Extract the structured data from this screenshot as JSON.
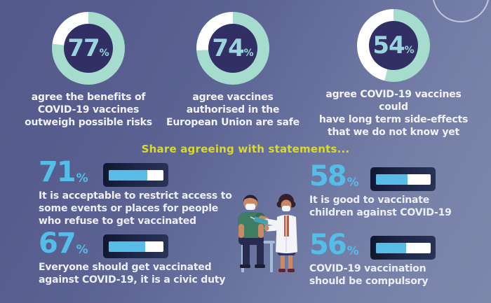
{
  "colors": {
    "background_start": "#545a8b",
    "background_end": "#7d87ac",
    "donut_ring": "#a6dccd",
    "donut_rest": "#ffffff",
    "donut_hole": "#312f63",
    "donut_number": "#9ad4dd",
    "bar_fill": "#57bde6",
    "bar_rest": "#ffffff",
    "bar_frame": "#1d2647",
    "stat_number": "#54bde8",
    "heading_yellow": "#d9da2c",
    "text": "#f1f2fa"
  },
  "donut_stats": [
    {
      "value": 77,
      "unit": "%",
      "caption": "agree the benefits of\nCOVID-19 vaccines\noutweigh possible risks"
    },
    {
      "value": 74,
      "unit": "%",
      "caption": "agree vaccines\nauthorised in the\nEuropean Union are safe"
    },
    {
      "value": 54,
      "unit": "%",
      "caption": "agree COVID-19 vaccines could\nhave long term side-effects\nthat we do not know yet"
    }
  ],
  "section_heading": "Share agreeing with statements...",
  "bar_stats_left": [
    {
      "value": 71,
      "unit": "%",
      "caption": "It is acceptable to restrict access to\nsome events or places for people\nwho refuse to get vaccinated"
    },
    {
      "value": 67,
      "unit": "%",
      "caption": "Everyone should get vaccinated\nagainst COVID-19, it is a civic duty"
    }
  ],
  "bar_stats_right": [
    {
      "value": 58,
      "unit": "%",
      "caption": "It is good to vaccinate\nchildren against COVID-19"
    },
    {
      "value": 56,
      "unit": "%",
      "caption": "COVID-19 vaccination\nshould be compulsory"
    }
  ],
  "illustration": {
    "description": "doctor wearing mask and white coat vaccinating a masked man seated on a chair"
  },
  "chart_data": [
    {
      "type": "pie",
      "subtype": "donut",
      "categories": [
        "agree",
        "remainder"
      ],
      "values": [
        77,
        23
      ],
      "label": "agree the benefits of COVID-19 vaccines outweigh possible risks",
      "colors": [
        "#a6dccd",
        "#ffffff"
      ]
    },
    {
      "type": "pie",
      "subtype": "donut",
      "categories": [
        "agree",
        "remainder"
      ],
      "values": [
        74,
        26
      ],
      "label": "agree vaccines authorised in the European Union are safe",
      "colors": [
        "#a6dccd",
        "#ffffff"
      ]
    },
    {
      "type": "pie",
      "subtype": "donut",
      "categories": [
        "agree",
        "remainder"
      ],
      "values": [
        54,
        46
      ],
      "label": "agree COVID-19 vaccines could have long term side-effects that we do not know yet",
      "colors": [
        "#a6dccd",
        "#ffffff"
      ]
    },
    {
      "type": "bar",
      "title": "Share agreeing with statements...",
      "categories": [
        "It is acceptable to restrict access to some events or places for people who refuse to get vaccinated",
        "Everyone should get vaccinated against COVID-19, it is a civic duty",
        "It is good to vaccinate children against COVID-19",
        "COVID-19 vaccination should be compulsory"
      ],
      "values": [
        71,
        67,
        58,
        56
      ],
      "unit": "%",
      "xlim": [
        0,
        100
      ],
      "legend": false,
      "grid": false
    }
  ]
}
